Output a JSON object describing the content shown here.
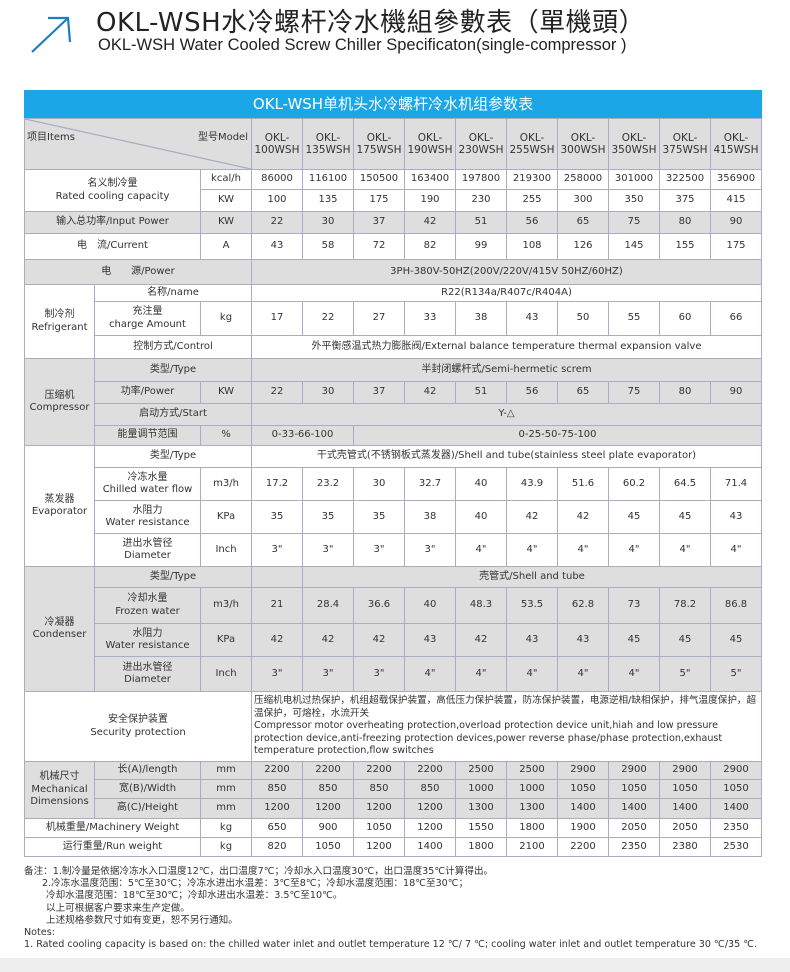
{
  "title": {
    "zh": "OKL-WSH水冷螺杆冷水機組參數表（單機頭）",
    "en": "OKL-WSH Water Cooled Screw Chiller Specificaton(single-compressor )",
    "icon": "arrow-up-right-icon",
    "accent": "#1a7fc1"
  },
  "table": {
    "banner": "OKL-WSH单机头水冷螺杆冷水机组参数表",
    "banner_color": "#1ba6e8",
    "items_label": "项目Items",
    "model_label": "型号Model",
    "models": [
      "OKL-\n100WSH",
      "OKL-\n135WSH",
      "OKL-\n175WSH",
      "OKL-\n190WSH",
      "OKL-\n230WSH",
      "OKL-\n255WSH",
      "OKL-\n300WSH",
      "OKL-\n350WSH",
      "OKL-\n375WSH",
      "OKL-\n415WSH"
    ],
    "rows": [
      {
        "bg": "w",
        "cells": [
          {
            "t": "名义制冷量\nRated cooling capacity",
            "cs": 2,
            "rs": 2
          },
          {
            "t": "kcal/h"
          },
          {
            "t": "86000"
          },
          {
            "t": "116100"
          },
          {
            "t": "150500"
          },
          {
            "t": "163400"
          },
          {
            "t": "197800"
          },
          {
            "t": "219300"
          },
          {
            "t": "258000"
          },
          {
            "t": "301000"
          },
          {
            "t": "322500"
          },
          {
            "t": "356900"
          }
        ]
      },
      {
        "bg": "w",
        "cells": [
          {
            "t": "KW"
          },
          {
            "t": "100"
          },
          {
            "t": "135"
          },
          {
            "t": "175"
          },
          {
            "t": "190"
          },
          {
            "t": "230"
          },
          {
            "t": "255"
          },
          {
            "t": "300"
          },
          {
            "t": "350"
          },
          {
            "t": "375"
          },
          {
            "t": "415"
          }
        ]
      },
      {
        "bg": "g",
        "cells": [
          {
            "t": "输入总功率/Input Power",
            "cs": 2
          },
          {
            "t": "KW"
          },
          {
            "t": "22"
          },
          {
            "t": "30"
          },
          {
            "t": "37"
          },
          {
            "t": "42"
          },
          {
            "t": "51"
          },
          {
            "t": "56"
          },
          {
            "t": "65"
          },
          {
            "t": "75"
          },
          {
            "t": "80"
          },
          {
            "t": "90"
          }
        ]
      },
      {
        "bg": "w",
        "cells": [
          {
            "t": "电　流/Current",
            "cs": 2
          },
          {
            "t": "A"
          },
          {
            "t": "43"
          },
          {
            "t": "58"
          },
          {
            "t": "72"
          },
          {
            "t": "82"
          },
          {
            "t": "99"
          },
          {
            "t": "108"
          },
          {
            "t": "126"
          },
          {
            "t": "145"
          },
          {
            "t": "155"
          },
          {
            "t": "175"
          }
        ]
      },
      {
        "bg": "g",
        "cells": [
          {
            "t": "电　　源/Power",
            "cs": 3
          },
          {
            "t": "3PH-380V-50HZ(200V/220V/415V  50HZ/60HZ)",
            "cs": 10
          }
        ]
      },
      {
        "bg": "w",
        "cells": [
          {
            "t": "制冷剂\nRefrigerant",
            "rs": 3
          },
          {
            "t": "名称/name",
            "cs": 2
          },
          {
            "t": "R22(R134a/R407c/R404A)",
            "cs": 10
          }
        ]
      },
      {
        "bg": "w",
        "cells": [
          {
            "t": "充注量\ncharge Amount"
          },
          {
            "t": "kg"
          },
          {
            "t": "17"
          },
          {
            "t": "22"
          },
          {
            "t": "27"
          },
          {
            "t": "33"
          },
          {
            "t": "38"
          },
          {
            "t": "43"
          },
          {
            "t": "50"
          },
          {
            "t": "55"
          },
          {
            "t": "60"
          },
          {
            "t": "66"
          }
        ]
      },
      {
        "bg": "w",
        "cells": [
          {
            "t": "控制方式/Control",
            "cs": 2
          },
          {
            "t": "外平衡感温式热力膨胀阀/External balance temperature thermal expansion valve",
            "cs": 10
          }
        ]
      },
      {
        "bg": "g",
        "cells": [
          {
            "t": "压缩机\nCompressor",
            "rs": 4
          },
          {
            "t": "类型/Type",
            "cs": 2
          },
          {
            "t": "半封闭螺杆式/Semi-hermetic screm",
            "cs": 10
          }
        ]
      },
      {
        "bg": "g",
        "cells": [
          {
            "t": "功率/Power"
          },
          {
            "t": "KW"
          },
          {
            "t": "22"
          },
          {
            "t": "30"
          },
          {
            "t": "37"
          },
          {
            "t": "42"
          },
          {
            "t": "51"
          },
          {
            "t": "56"
          },
          {
            "t": "65"
          },
          {
            "t": "75"
          },
          {
            "t": "80"
          },
          {
            "t": "90"
          }
        ]
      },
      {
        "bg": "g",
        "cells": [
          {
            "t": "启动方式/Start",
            "cs": 2
          },
          {
            "t": "Y-△",
            "cs": 10
          }
        ]
      },
      {
        "bg": "g",
        "cells": [
          {
            "t": "能量调节范围"
          },
          {
            "t": "%"
          },
          {
            "t": "0-33-66-100",
            "cs": 2
          },
          {
            "t": "0-25-50-75-100",
            "cs": 8
          }
        ]
      },
      {
        "bg": "w",
        "cells": [
          {
            "t": "蒸发器\nEvaporator",
            "rs": 4
          },
          {
            "t": "类型/Type",
            "cs": 2
          },
          {
            "t": "干式壳管式(不锈钢板式蒸发器)/Shell and tube(stainless steel plate evaporator)",
            "cs": 10
          }
        ]
      },
      {
        "bg": "w",
        "cells": [
          {
            "t": "冷冻水量\nChilled water flow"
          },
          {
            "t": "m3/h"
          },
          {
            "t": "17.2"
          },
          {
            "t": "23.2"
          },
          {
            "t": "30"
          },
          {
            "t": "32.7"
          },
          {
            "t": "40"
          },
          {
            "t": "43.9"
          },
          {
            "t": "51.6"
          },
          {
            "t": "60.2"
          },
          {
            "t": "64.5"
          },
          {
            "t": "71.4"
          }
        ]
      },
      {
        "bg": "w",
        "cells": [
          {
            "t": "水阻力\nWater resistance"
          },
          {
            "t": "KPa"
          },
          {
            "t": "35"
          },
          {
            "t": "35"
          },
          {
            "t": "35"
          },
          {
            "t": "38"
          },
          {
            "t": "40"
          },
          {
            "t": "42"
          },
          {
            "t": "42"
          },
          {
            "t": "45"
          },
          {
            "t": "45"
          },
          {
            "t": "43"
          }
        ]
      },
      {
        "bg": "w",
        "cells": [
          {
            "t": "进出水管径\nDiameter"
          },
          {
            "t": "Inch"
          },
          {
            "t": "3\""
          },
          {
            "t": "3\""
          },
          {
            "t": "3\""
          },
          {
            "t": "3\""
          },
          {
            "t": "4\""
          },
          {
            "t": "4\""
          },
          {
            "t": "4\""
          },
          {
            "t": "4\""
          },
          {
            "t": "4\""
          },
          {
            "t": "4\""
          }
        ]
      },
      {
        "bg": "g",
        "cells": [
          {
            "t": "冷凝器\nCondenser",
            "rs": 4
          },
          {
            "t": "类型/Type",
            "cs": 2
          },
          {
            "t": ""
          },
          {
            "t": "壳管式/Shell and tube",
            "cs": 9
          }
        ]
      },
      {
        "bg": "g",
        "cells": [
          {
            "t": "冷却水量\nFrozen water"
          },
          {
            "t": "m3/h"
          },
          {
            "t": "21"
          },
          {
            "t": "28.4"
          },
          {
            "t": "36.6"
          },
          {
            "t": "40"
          },
          {
            "t": "48.3"
          },
          {
            "t": "53.5"
          },
          {
            "t": "62.8"
          },
          {
            "t": "73"
          },
          {
            "t": "78.2"
          },
          {
            "t": "86.8"
          }
        ]
      },
      {
        "bg": "g",
        "cells": [
          {
            "t": "水阻力\nWater resistance"
          },
          {
            "t": "KPa"
          },
          {
            "t": "42"
          },
          {
            "t": "42"
          },
          {
            "t": "42"
          },
          {
            "t": "43"
          },
          {
            "t": "42"
          },
          {
            "t": "43"
          },
          {
            "t": "43"
          },
          {
            "t": "45"
          },
          {
            "t": "45"
          },
          {
            "t": "45"
          }
        ]
      },
      {
        "bg": "g",
        "cells": [
          {
            "t": "进出水管径\nDiameter"
          },
          {
            "t": "Inch"
          },
          {
            "t": "3\""
          },
          {
            "t": "3\""
          },
          {
            "t": "3\""
          },
          {
            "t": "4\""
          },
          {
            "t": "4\""
          },
          {
            "t": "4\""
          },
          {
            "t": "4\""
          },
          {
            "t": "4\""
          },
          {
            "t": "5\""
          },
          {
            "t": "5\""
          }
        ]
      },
      {
        "bg": "w",
        "cells": [
          {
            "t": "安全保护装置\nSecurity protection",
            "cs": 3
          },
          {
            "t": "压缩机电机过热保护，机组超载保护装置，高低压力保护装置，防冻保护装置，电源逆相/缺相保护，排气温度保护，超温保护，可熔栓，水流开关\n  Compressor motor overheating protection,overload protection device unit,hiah and low pressure protection device,anti-freezing protection devices,power reverse phase/phase protection,exhaust temperature protection,flow switches",
            "cs": 10,
            "left": true
          }
        ]
      },
      {
        "bg": "g",
        "cells": [
          {
            "t": "机械尺寸\nMechanical\nDimensions",
            "rs": 3
          },
          {
            "t": "长(A)/length"
          },
          {
            "t": "mm"
          },
          {
            "t": "2200"
          },
          {
            "t": "2200"
          },
          {
            "t": "2200"
          },
          {
            "t": "2200"
          },
          {
            "t": "2500"
          },
          {
            "t": "2500"
          },
          {
            "t": "2900"
          },
          {
            "t": "2900"
          },
          {
            "t": "2900"
          },
          {
            "t": "2900"
          }
        ]
      },
      {
        "bg": "g",
        "cells": [
          {
            "t": "宽(B)/Width"
          },
          {
            "t": "mm"
          },
          {
            "t": "850"
          },
          {
            "t": "850"
          },
          {
            "t": "850"
          },
          {
            "t": "850"
          },
          {
            "t": "1000"
          },
          {
            "t": "1000"
          },
          {
            "t": "1050"
          },
          {
            "t": "1050"
          },
          {
            "t": "1050"
          },
          {
            "t": "1050"
          }
        ]
      },
      {
        "bg": "g",
        "cells": [
          {
            "t": "高(C)/Height"
          },
          {
            "t": "mm"
          },
          {
            "t": "1200"
          },
          {
            "t": "1200"
          },
          {
            "t": "1200"
          },
          {
            "t": "1200"
          },
          {
            "t": "1300"
          },
          {
            "t": "1300"
          },
          {
            "t": "1400"
          },
          {
            "t": "1400"
          },
          {
            "t": "1400"
          },
          {
            "t": "1400"
          }
        ]
      },
      {
        "bg": "w",
        "cells": [
          {
            "t": "机械重量/Machinery Weight",
            "cs": 2
          },
          {
            "t": "kg"
          },
          {
            "t": "650"
          },
          {
            "t": "900"
          },
          {
            "t": "1050"
          },
          {
            "t": "1200"
          },
          {
            "t": "1550"
          },
          {
            "t": "1800"
          },
          {
            "t": "1900"
          },
          {
            "t": "2050"
          },
          {
            "t": "2050"
          },
          {
            "t": "2350"
          }
        ]
      },
      {
        "bg": "w",
        "cells": [
          {
            "t": "运行重量/Run weight",
            "cs": 2
          },
          {
            "t": "kg"
          },
          {
            "t": "820"
          },
          {
            "t": "1050"
          },
          {
            "t": "1200"
          },
          {
            "t": "1400"
          },
          {
            "t": "1800"
          },
          {
            "t": "2100"
          },
          {
            "t": "2200"
          },
          {
            "t": "2350"
          },
          {
            "t": "2380"
          },
          {
            "t": "2530"
          }
        ]
      }
    ]
  },
  "notes": [
    "备注：1.制冷量是依据冷冻水入口温度12℃，出口温度7℃；冷却水入口温度30℃，出口温度35℃计算得出。",
    "2.冷冻水温度范围：5℃至30℃；冷冻水进出水温差：3℃至8℃；冷却水温度范围：18℃至30℃；",
    "冷却水温度范围：18℃至30℃；冷却水进出水温差：3.5℃至10℃。",
    "以上可根据客户要求来生产定做。",
    "上述规格参数尺寸如有变更，恕不另行通知。",
    "Notes:",
    "1. Rated cooling capacity is based on: the chilled water inlet and outlet temperature 12 ℃/ 7 ℃; cooling water inlet and outlet temperature 30 ℃/35 ℃."
  ]
}
